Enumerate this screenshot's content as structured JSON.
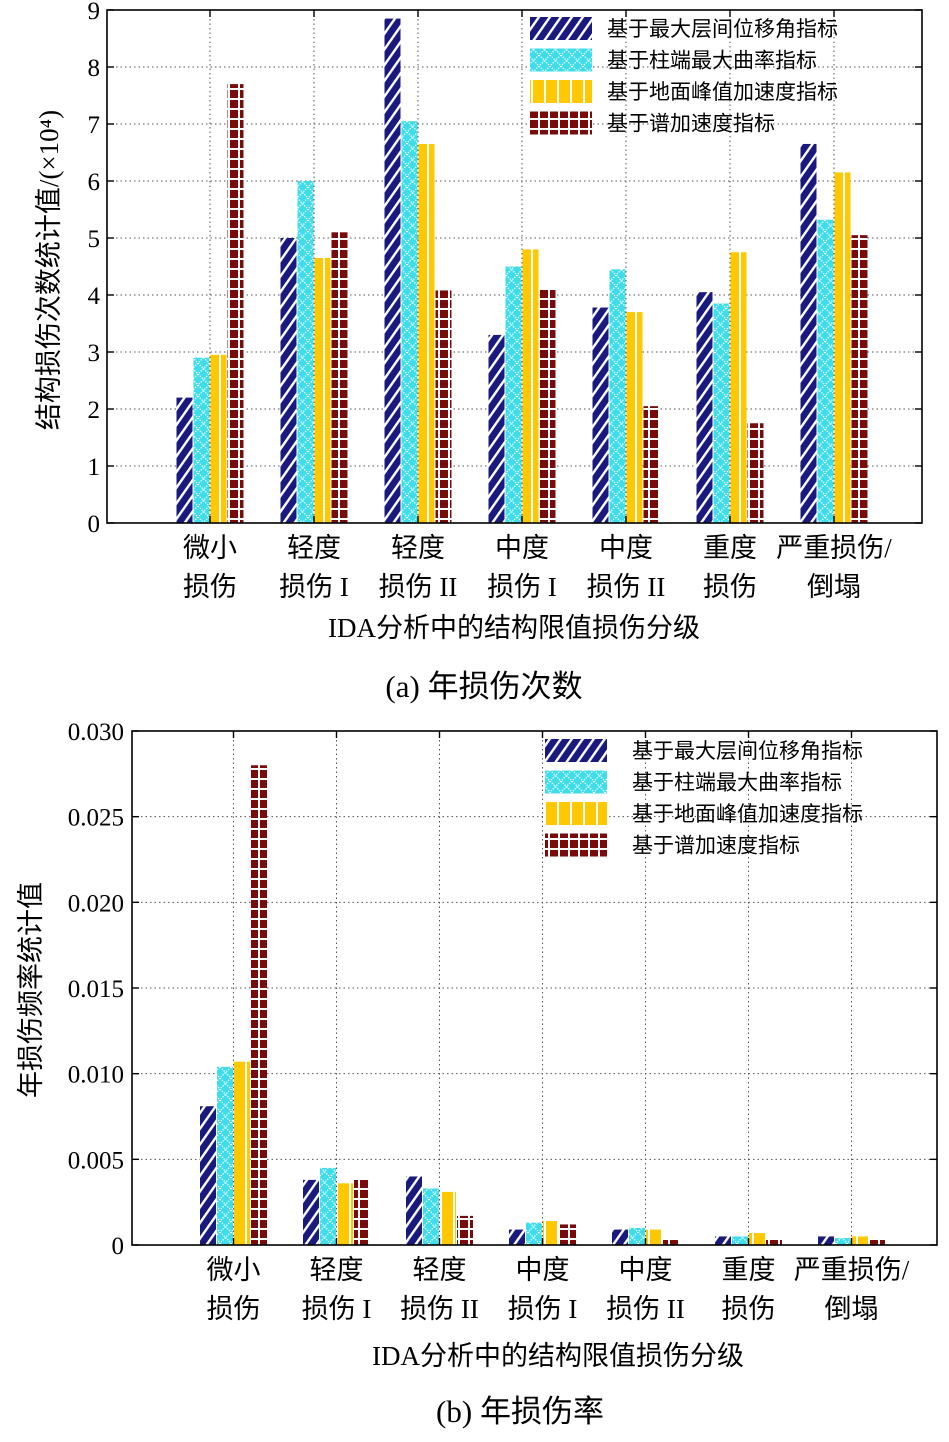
{
  "chart_data": [
    {
      "type": "bar",
      "caption": "(a)  年损伤次数",
      "ylabel": "结构损伤次数统计值/(×10⁴)",
      "xlabel": "IDA分析中的结构限值损伤分级",
      "ylim": [
        0,
        9
      ],
      "yticks": [
        "0",
        "1",
        "2",
        "3",
        "4",
        "5",
        "6",
        "7",
        "8",
        "9"
      ],
      "categories": [
        [
          "微小",
          "损伤"
        ],
        [
          "轻度",
          "损伤 I"
        ],
        [
          "轻度",
          "损伤 II"
        ],
        [
          "中度",
          "损伤 I"
        ],
        [
          "中度",
          "损伤 II"
        ],
        [
          "重度",
          "损伤"
        ],
        [
          "严重损伤/",
          "倒塌"
        ]
      ],
      "legend_position": "top-right",
      "grid": true,
      "series": [
        {
          "name": "基于最大层间位移角指标",
          "values": [
            2.2,
            5.0,
            8.85,
            3.3,
            3.78,
            4.05,
            6.65
          ]
        },
        {
          "name": "基于柱端最大曲率指标",
          "values": [
            2.9,
            6.0,
            7.05,
            4.5,
            4.45,
            3.85,
            5.32
          ]
        },
        {
          "name": "基于地面峰值加速度指标",
          "values": [
            2.95,
            4.65,
            6.65,
            4.8,
            3.7,
            4.75,
            6.15
          ]
        },
        {
          "name": "基于谱加速度指标",
          "values": [
            7.7,
            5.1,
            4.08,
            4.1,
            2.05,
            1.75,
            5.05
          ]
        }
      ]
    },
    {
      "type": "bar",
      "caption": "(b)  年损伤率",
      "ylabel": "年损伤频率统计值",
      "xlabel": "IDA分析中的结构限值损伤分级",
      "ylim": [
        0,
        0.03
      ],
      "yticks": [
        "0",
        "0.005",
        "0.010",
        "0.015",
        "0.020",
        "0.025",
        "0.030"
      ],
      "categories": [
        [
          "微小",
          "损伤"
        ],
        [
          "轻度",
          "损伤 I"
        ],
        [
          "轻度",
          "损伤 II"
        ],
        [
          "中度",
          "损伤 I"
        ],
        [
          "中度",
          "损伤 II"
        ],
        [
          "重度",
          "损伤"
        ],
        [
          "严重损伤/",
          "倒塌"
        ]
      ],
      "legend_position": "top-right",
      "grid": true,
      "series": [
        {
          "name": "基于最大层间位移角指标",
          "values": [
            0.0081,
            0.0038,
            0.004,
            0.0009,
            0.0009,
            0.0005,
            0.0005
          ]
        },
        {
          "name": "基于柱端最大曲率指标",
          "values": [
            0.0104,
            0.0045,
            0.0033,
            0.0013,
            0.001,
            0.0005,
            0.0004
          ]
        },
        {
          "name": "基于地面峰值加速度指标",
          "values": [
            0.0107,
            0.0036,
            0.0031,
            0.0014,
            0.0009,
            0.0007,
            0.0005
          ]
        },
        {
          "name": "基于谱加速度指标",
          "values": [
            0.028,
            0.0038,
            0.0017,
            0.0012,
            0.0003,
            0.0003,
            0.0003
          ]
        }
      ]
    }
  ],
  "colors": {
    "series": [
      "#1a1a7e",
      "#3fdcea",
      "#ffc800",
      "#7a0b0b"
    ]
  }
}
